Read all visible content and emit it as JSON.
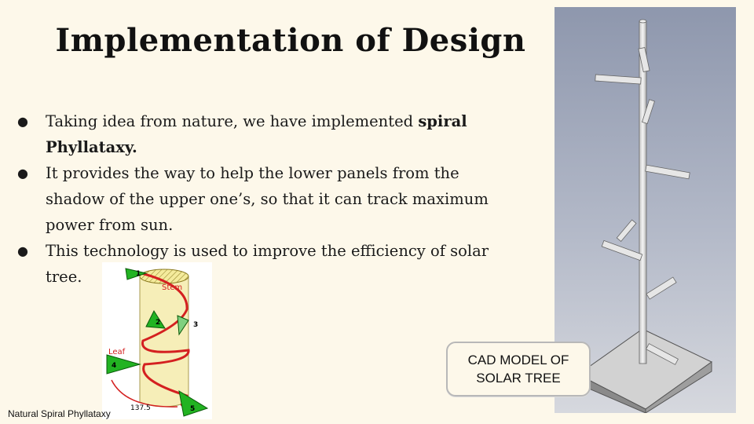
{
  "slide": {
    "title": "Implementation of Design",
    "bullets": [
      {
        "text": "Taking idea from nature, we have implemented ",
        "bold": "spiral Phyllataxy."
      },
      {
        "text": "It provides the way to help the lower panels from the shadow of the upper one’s, so that it can track maximum power from sun.",
        "bold": ""
      },
      {
        "text": "This technology is used to improve the efficiency of solar tree.",
        "bold": ""
      }
    ],
    "bullet_glyph": "●"
  },
  "diagram": {
    "caption": "Natural Spiral Phyllataxy",
    "stem_label": "Stem",
    "leaf_label": "Leaf",
    "leaf_numbers": [
      "1",
      "2",
      "3",
      "4",
      "5"
    ],
    "angle_label": "137.5",
    "colors": {
      "leaf": "#22b322",
      "spiral": "#d42020",
      "stem": "#f6eeb8",
      "label": "#d42020"
    }
  },
  "cad": {
    "label": "CAD MODEL OF\nSOLAR TREE",
    "background": "#a9b1c4"
  }
}
